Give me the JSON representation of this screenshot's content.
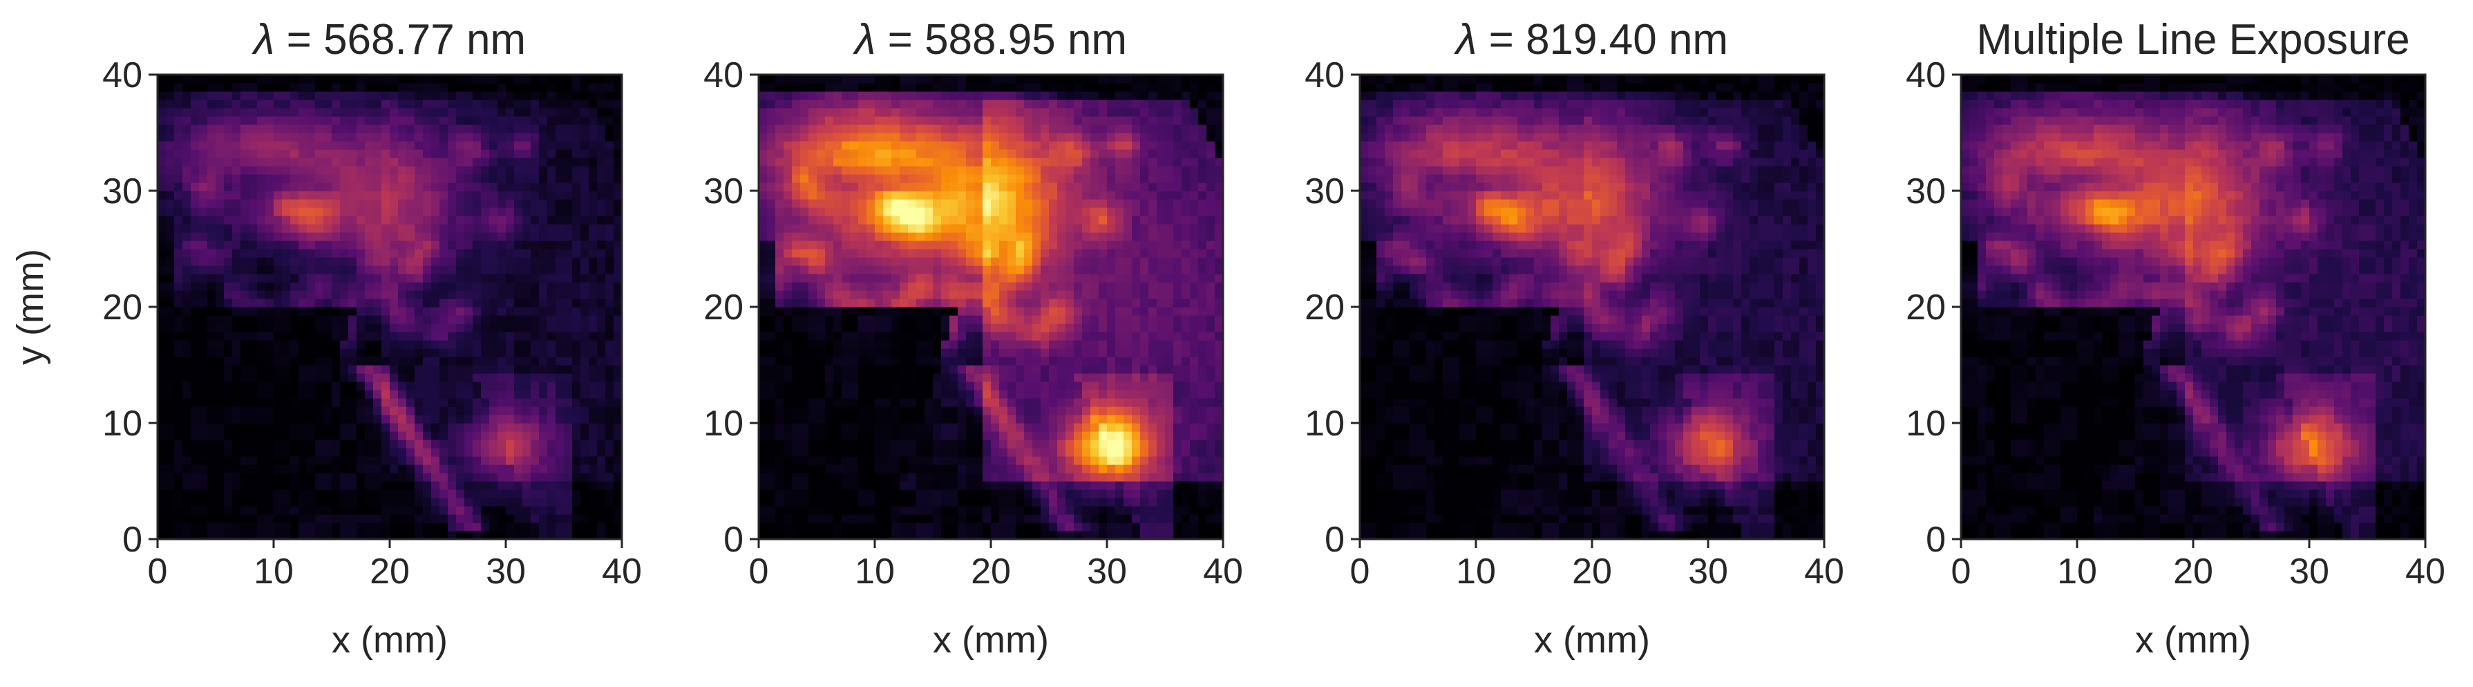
{
  "chart_data": [
    {
      "type": "heatmap",
      "title": "λ = 568.77 nm",
      "title_symbol": "λ",
      "title_rest": " = 568.77 nm",
      "xlabel": "x (mm)",
      "ylabel": "y (mm)",
      "xlim": [
        0,
        40
      ],
      "ylim": [
        0,
        40
      ],
      "xticks": [
        "0",
        "10",
        "20",
        "30",
        "40"
      ],
      "yticks": [
        "0",
        "10",
        "20",
        "30",
        "40"
      ],
      "colormap": "inferno",
      "intensity_scale": 0.65,
      "sodium_boost": 0.0,
      "streak_boost": 0.6
    },
    {
      "type": "heatmap",
      "title": "λ = 588.95 nm",
      "title_symbol": "λ",
      "title_rest": " = 588.95 nm",
      "xlabel": "x (mm)",
      "ylabel": "",
      "xlim": [
        0,
        40
      ],
      "ylim": [
        0,
        40
      ],
      "xticks": [
        "0",
        "10",
        "20",
        "30",
        "40"
      ],
      "yticks": [
        "0",
        "10",
        "20",
        "30",
        "40"
      ],
      "colormap": "inferno",
      "intensity_scale": 0.95,
      "sodium_boost": 0.45,
      "streak_boost": 0.1
    },
    {
      "type": "heatmap",
      "title": "λ = 819.40 nm",
      "title_symbol": "λ",
      "title_rest": " = 819.40 nm",
      "xlabel": "x (mm)",
      "ylabel": "",
      "xlim": [
        0,
        40
      ],
      "ylim": [
        0,
        40
      ],
      "xticks": [
        "0",
        "10",
        "20",
        "30",
        "40"
      ],
      "yticks": [
        "0",
        "10",
        "20",
        "30",
        "40"
      ],
      "colormap": "inferno",
      "intensity_scale": 0.78,
      "sodium_boost": 0.1,
      "streak_boost": 0.1
    },
    {
      "type": "heatmap",
      "title": "Multiple Line Exposure",
      "title_symbol": "",
      "title_rest": "Multiple Line Exposure",
      "xlabel": "x (mm)",
      "ylabel": "",
      "xlim": [
        0,
        40
      ],
      "ylim": [
        0,
        40
      ],
      "xticks": [
        "0",
        "10",
        "20",
        "30",
        "40"
      ],
      "yticks": [
        "0",
        "10",
        "20",
        "30",
        "40"
      ],
      "colormap": "inferno",
      "intensity_scale": 0.78,
      "sodium_boost": 0.2,
      "streak_boost": 0.1
    }
  ],
  "colors": {
    "background": "#ffffff",
    "axis": "#262626",
    "text": "#262626"
  }
}
